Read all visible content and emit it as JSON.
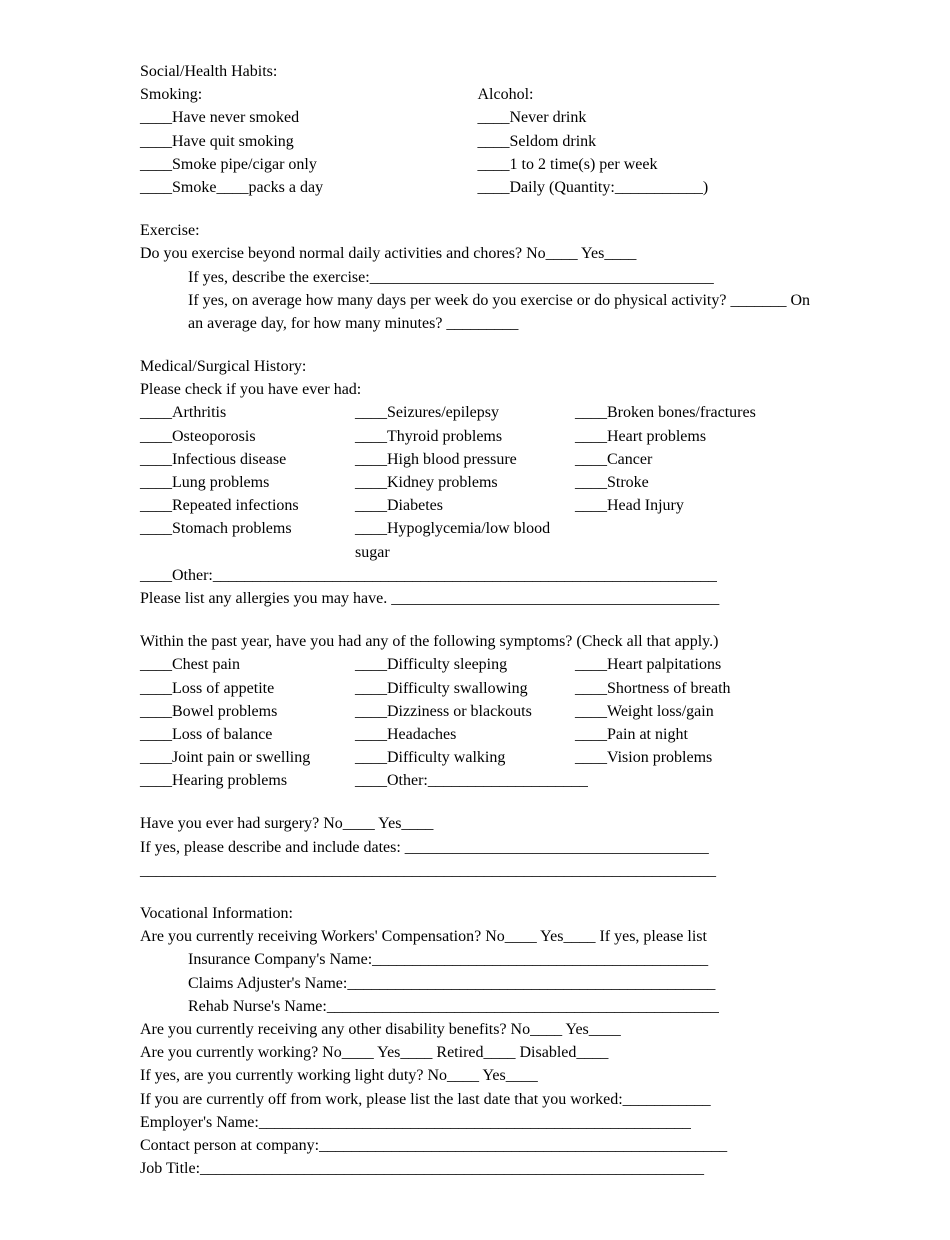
{
  "social": {
    "title": "Social/Health Habits:",
    "smoking": {
      "label": "Smoking:",
      "opt1": "____Have never smoked",
      "opt2": "____Have quit smoking",
      "opt3": "____Smoke pipe/cigar only",
      "opt4": "____Smoke____packs a day"
    },
    "alcohol": {
      "label": "Alcohol:",
      "opt1": "____Never drink",
      "opt2": "____Seldom drink",
      "opt3": "____1 to 2 time(s) per week",
      "opt4": "____Daily (Quantity:___________)"
    }
  },
  "exercise": {
    "title": "Exercise:",
    "q1": "Do you exercise beyond normal daily activities and chores?  No____ Yes____",
    "q2": "If yes, describe the exercise:___________________________________________",
    "q3": "If yes, on average how many days per week do you exercise or do physical activity? _______  On an average day, for how many minutes? _________"
  },
  "medical": {
    "title": "Medical/Surgical History:",
    "intro": "Please check if you have ever had:",
    "col1": {
      "r1": "____Arthritis",
      "r2": "____Osteoporosis",
      "r3": "____Infectious disease",
      "r4": "____Lung problems",
      "r5": "____Repeated infections",
      "r6": "____Stomach problems"
    },
    "col2": {
      "r1": "____Seizures/epilepsy",
      "r2": "____Thyroid problems",
      "r3": "____High blood pressure",
      "r4": "____Kidney problems",
      "r5": "____Diabetes",
      "r6": "____Hypoglycemia/low blood sugar"
    },
    "col3": {
      "r1": "____Broken bones/fractures",
      "r2": "____Heart problems",
      "r3": "____Cancer",
      "r4": "____Stroke",
      "r5": "____Head Injury"
    },
    "other": "____Other:_______________________________________________________________",
    "allergies": "Please list any allergies you may have. _________________________________________"
  },
  "symptoms": {
    "intro": "Within the past year, have you had any of the following symptoms? (Check all that apply.)",
    "col1": {
      "r1": "____Chest pain",
      "r2": "____Loss of appetite",
      "r3": "____Bowel problems",
      "r4": "____Loss of balance",
      "r5": "____Joint pain or swelling",
      "r6": "____Hearing problems"
    },
    "col2": {
      "r1": "____Difficulty sleeping",
      "r2": "____Difficulty swallowing",
      "r3": "____Dizziness or blackouts",
      "r4": "____Headaches",
      "r5": "____Difficulty walking",
      "r6": "____Other:____________________"
    },
    "col3": {
      "r1": "____Heart palpitations",
      "r2": "____Shortness of breath",
      "r3": "____Weight loss/gain",
      "r4": "____Pain at night",
      "r5": "____Vision problems"
    }
  },
  "surgery": {
    "q1": "Have you ever had surgery? No____ Yes____",
    "q2": "If yes, please describe and include dates: ______________________________________",
    "line": "________________________________________________________________________"
  },
  "vocational": {
    "title": "Vocational Information:",
    "q1": "Are you currently receiving Workers' Compensation? No____ Yes____ If yes, please list",
    "q1a": "Insurance Company's Name:__________________________________________",
    "q1b": "Claims Adjuster's Name:______________________________________________",
    "q1c": "Rehab Nurse's Name:_________________________________________________",
    "q2": "Are you currently receiving any other disability benefits? No____ Yes____",
    "q3": "Are you currently working? No____ Yes____ Retired____ Disabled____",
    "q4": "If yes, are you currently working light duty? No____ Yes____",
    "q5": "If you are currently off from work, please list the last date that you worked:___________",
    "q6": "Employer's Name:______________________________________________________",
    "q7": "Contact person at company:___________________________________________________",
    "q8": "Job Title:_______________________________________________________________"
  }
}
